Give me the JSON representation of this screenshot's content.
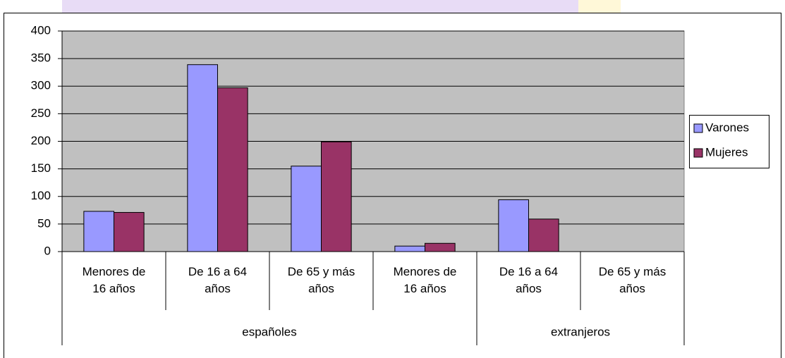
{
  "chart_data": {
    "type": "bar",
    "groups": [
      {
        "label": "españoles",
        "categories": [
          "Menores de\n16 años",
          "De 16 a 64\naños",
          "De 65 y más\naños",
          "Menores de\n16 años"
        ]
      },
      {
        "label": "extranjeros",
        "categories": [
          "De 16 a 64\naños",
          "De 65 y más\naños"
        ]
      }
    ],
    "series": [
      {
        "name": "Varones",
        "color": "#9999ff",
        "values": [
          73,
          339,
          155,
          10,
          94,
          null
        ]
      },
      {
        "name": "Mujeres",
        "color": "#993366",
        "values": [
          71,
          297,
          199,
          15,
          59,
          null
        ]
      }
    ],
    "ylim": [
      0,
      400
    ],
    "yticks": [
      0,
      50,
      100,
      150,
      200,
      250,
      300,
      350,
      400
    ],
    "grid": true,
    "legend": "right",
    "plot_background": "#c0c0c0"
  }
}
